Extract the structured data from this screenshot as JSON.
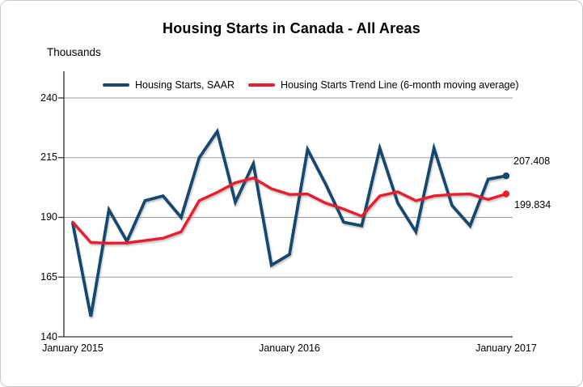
{
  "chart": {
    "title": "Housing Starts in Canada - All Areas",
    "y_unit_label": "Thousands",
    "legend": [
      {
        "id": "saar",
        "label": "Housing Starts, SAAR",
        "color": "#16476d"
      },
      {
        "id": "trend",
        "label": "Housing Starts Trend Line (6-month moving average)",
        "color": "#eb1c2d"
      }
    ],
    "end_labels": {
      "saar": "207.408",
      "trend": "199.834"
    }
  },
  "chart_data": {
    "type": "line",
    "x": [
      "2015-01",
      "2015-02",
      "2015-03",
      "2015-04",
      "2015-05",
      "2015-06",
      "2015-07",
      "2015-08",
      "2015-09",
      "2015-10",
      "2015-11",
      "2015-12",
      "2016-01",
      "2016-02",
      "2016-03",
      "2016-04",
      "2016-05",
      "2016-06",
      "2016-07",
      "2016-08",
      "2016-09",
      "2016-10",
      "2016-11",
      "2016-12",
      "2017-01"
    ],
    "x_tick_labels": [
      "January 2015",
      "January 2016",
      "January 2017"
    ],
    "x_tick_indices": [
      0,
      12,
      24
    ],
    "yticks": [
      140,
      165,
      190,
      215,
      240
    ],
    "ylim": [
      140,
      240
    ],
    "ylabel": "Thousands",
    "grid": true,
    "legend_position": "top",
    "series": [
      {
        "name": "Housing Starts, SAAR",
        "color": "#16476d",
        "end_label": "207.408",
        "values": [
          187.4,
          148.5,
          193.2,
          180.0,
          197.0,
          199.0,
          190.0,
          215.0,
          226.0,
          196.4,
          212.5,
          170.0,
          174.5,
          218.5,
          204.0,
          188.0,
          186.5,
          219.0,
          196.0,
          184.0,
          219.0,
          195.0,
          186.5,
          206.0,
          207.408
        ]
      },
      {
        "name": "Housing Starts Trend Line (6-month moving average)",
        "color": "#eb1c2d",
        "end_label": "199.834",
        "values": [
          188.0,
          179.5,
          179.2,
          179.3,
          180.3,
          181.3,
          184.0,
          197.0,
          200.5,
          204.5,
          206.5,
          202.0,
          199.6,
          199.8,
          196.0,
          193.5,
          190.5,
          199.0,
          200.7,
          197.0,
          199.0,
          199.6,
          199.8,
          197.5,
          199.834
        ]
      }
    ]
  },
  "colors": {
    "grid": "#9e9e9e",
    "axis": "#2b2b2b",
    "border": "#c9c9c9"
  }
}
